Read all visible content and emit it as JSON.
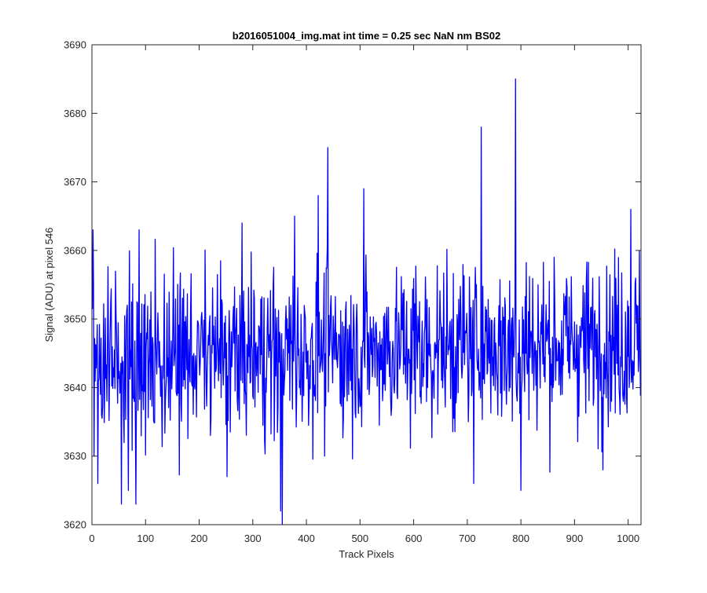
{
  "chart_data": {
    "type": "line",
    "title": "b2016051004_img.mat int time = 0.25 sec  NaN nm BS02",
    "xlabel": "Track Pixels",
    "ylabel": "Signal (ADU) at pixel 546",
    "xlim": [
      0,
      1024
    ],
    "ylim": [
      3620,
      3690
    ],
    "x_ticks": [
      0,
      100,
      200,
      300,
      400,
      500,
      600,
      700,
      800,
      900,
      1000
    ],
    "y_ticks": [
      3620,
      3630,
      3640,
      3650,
      3660,
      3670,
      3680,
      3690
    ],
    "grid": false,
    "series": [
      {
        "color": "#0000ff",
        "x_start": 1,
        "x_step": 1,
        "count": 1024,
        "baseline": 3645.5,
        "noise_sd": 6,
        "features": [
          {
            "x": 2,
            "y": 3663
          },
          {
            "x": 4,
            "y": 3630
          },
          {
            "x": 11,
            "y": 3626
          },
          {
            "x": 55,
            "y": 3623
          },
          {
            "x": 68,
            "y": 3625
          },
          {
            "x": 82,
            "y": 3623
          },
          {
            "x": 88,
            "y": 3663
          },
          {
            "x": 252,
            "y": 3663
          },
          {
            "x": 252,
            "y": 3627
          },
          {
            "x": 352,
            "y": 3622
          },
          {
            "x": 355,
            "y": 3620
          },
          {
            "x": 378,
            "y": 3665
          },
          {
            "x": 422,
            "y": 3668
          },
          {
            "x": 440,
            "y": 3675
          },
          {
            "x": 507,
            "y": 3669
          },
          {
            "x": 712,
            "y": 3626
          },
          {
            "x": 726,
            "y": 3678
          },
          {
            "x": 790,
            "y": 3685
          },
          {
            "x": 800,
            "y": 3625
          },
          {
            "x": 953,
            "y": 3628
          },
          {
            "x": 1005,
            "y": 3666
          }
        ]
      }
    ]
  }
}
